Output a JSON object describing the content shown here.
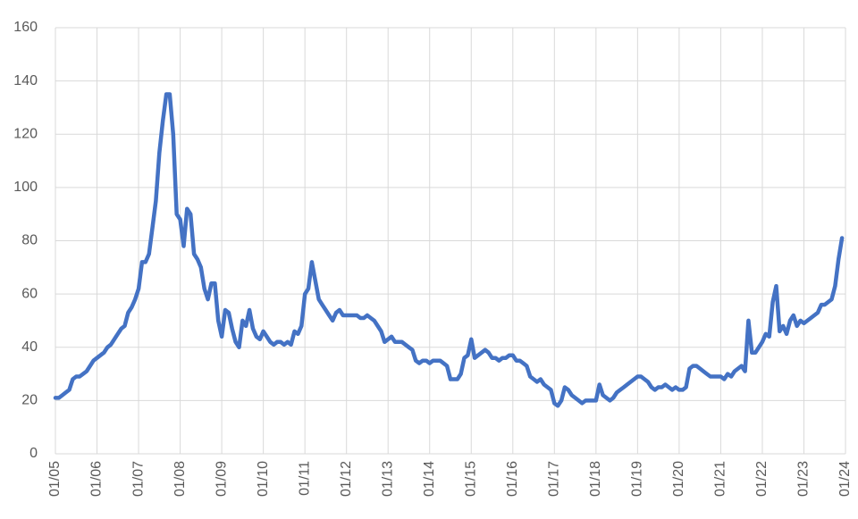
{
  "chart_data": {
    "type": "line",
    "x": [
      "01/05",
      "02/05",
      "03/05",
      "04/05",
      "05/05",
      "06/05",
      "07/05",
      "08/05",
      "09/05",
      "10/05",
      "11/05",
      "12/05",
      "01/06",
      "02/06",
      "03/06",
      "04/06",
      "05/06",
      "06/06",
      "07/06",
      "08/06",
      "09/06",
      "10/06",
      "11/06",
      "12/06",
      "01/07",
      "02/07",
      "03/07",
      "04/07",
      "05/07",
      "06/07",
      "07/07",
      "08/07",
      "09/07",
      "10/07",
      "11/07",
      "12/07",
      "01/08",
      "02/08",
      "03/08",
      "04/08",
      "05/08",
      "06/08",
      "07/08",
      "08/08",
      "09/08",
      "10/08",
      "11/08",
      "12/08",
      "01/09",
      "02/09",
      "03/09",
      "04/09",
      "05/09",
      "06/09",
      "07/09",
      "08/09",
      "09/09",
      "10/09",
      "11/09",
      "12/09",
      "01/10",
      "02/10",
      "03/10",
      "04/10",
      "05/10",
      "06/10",
      "07/10",
      "08/10",
      "09/10",
      "10/10",
      "11/10",
      "12/10",
      "01/11",
      "02/11",
      "03/11",
      "04/11",
      "05/11",
      "06/11",
      "07/11",
      "08/11",
      "09/11",
      "10/11",
      "11/11",
      "12/11",
      "01/12",
      "02/12",
      "03/12",
      "04/12",
      "05/12",
      "06/12",
      "07/12",
      "08/12",
      "09/12",
      "10/12",
      "11/12",
      "12/12",
      "01/13",
      "02/13",
      "03/13",
      "04/13",
      "05/13",
      "06/13",
      "07/13",
      "08/13",
      "09/13",
      "10/13",
      "11/13",
      "12/13",
      "01/14",
      "02/14",
      "03/14",
      "04/14",
      "05/14",
      "06/14",
      "07/14",
      "08/14",
      "09/14",
      "10/14",
      "11/14",
      "12/14",
      "01/15",
      "02/15",
      "03/15",
      "04/15",
      "05/15",
      "06/15",
      "07/15",
      "08/15",
      "09/15",
      "10/15",
      "11/15",
      "12/15",
      "01/16",
      "02/16",
      "03/16",
      "04/16",
      "05/16",
      "06/16",
      "07/16",
      "08/16",
      "09/16",
      "10/16",
      "11/16",
      "12/16",
      "01/17",
      "02/17",
      "03/17",
      "04/17",
      "05/17",
      "06/17",
      "07/17",
      "08/17",
      "09/17",
      "10/17",
      "11/17",
      "12/17",
      "01/18",
      "02/18",
      "03/18",
      "04/18",
      "05/18",
      "06/18",
      "07/18",
      "08/18",
      "09/18",
      "10/18",
      "11/18",
      "12/18",
      "01/19",
      "02/19",
      "03/19",
      "04/19",
      "05/19",
      "06/19",
      "07/19",
      "08/19",
      "09/19",
      "10/19",
      "11/19",
      "12/19",
      "01/20",
      "02/20",
      "03/20",
      "04/20",
      "05/20",
      "06/20",
      "07/20",
      "08/20",
      "09/20",
      "10/20",
      "11/20",
      "12/20",
      "01/21",
      "02/21",
      "03/21",
      "04/21",
      "05/21",
      "06/21",
      "07/21",
      "08/21",
      "09/21",
      "10/21",
      "11/21",
      "12/21",
      "01/22",
      "02/22",
      "03/22",
      "04/22",
      "05/22",
      "06/22",
      "07/22",
      "08/22",
      "09/22",
      "10/22",
      "11/22",
      "12/22",
      "01/23",
      "02/23",
      "03/23",
      "04/23",
      "05/23",
      "06/23",
      "07/23",
      "08/23",
      "09/23",
      "10/23",
      "11/23",
      "12/23"
    ],
    "series": [
      {
        "color": "#4472c4",
        "values": [
          21,
          21,
          22,
          23,
          24,
          28,
          29,
          29,
          30,
          31,
          33,
          35,
          36,
          37,
          38,
          40,
          41,
          43,
          45,
          47,
          48,
          53,
          55,
          58,
          62,
          72,
          72,
          75,
          85,
          95,
          113,
          125,
          135,
          135,
          120,
          90,
          88,
          78,
          92,
          90,
          75,
          73,
          70,
          62,
          58,
          64,
          64,
          50,
          44,
          54,
          53,
          47,
          42,
          40,
          50,
          48,
          54,
          47,
          44,
          43,
          46,
          44,
          42,
          41,
          42,
          42,
          41,
          42,
          41,
          46,
          45,
          48,
          60,
          62,
          72,
          65,
          58,
          56,
          54,
          52,
          50,
          53,
          54,
          52,
          52,
          52,
          52,
          52,
          51,
          51,
          52,
          51,
          50,
          48,
          46,
          42,
          43,
          44,
          42,
          42,
          42,
          41,
          40,
          39,
          35,
          34,
          35,
          35,
          34,
          35,
          35,
          35,
          34,
          33,
          28,
          28,
          28,
          30,
          36,
          37,
          43,
          36,
          37,
          38,
          39,
          38,
          36,
          36,
          35,
          36,
          36,
          37,
          37,
          35,
          35,
          34,
          33,
          29,
          28,
          27,
          28,
          26,
          25,
          24,
          19,
          18,
          20,
          25,
          24,
          22,
          21,
          20,
          19,
          20,
          20,
          20,
          20,
          26,
          22,
          21,
          20,
          21,
          23,
          24,
          25,
          26,
          27,
          28,
          29,
          29,
          28,
          27,
          25,
          24,
          25,
          25,
          26,
          25,
          24,
          25,
          24,
          24,
          25,
          32,
          33,
          33,
          32,
          31,
          30,
          29,
          29,
          29,
          29,
          28,
          30,
          29,
          31,
          32,
          33,
          31,
          50,
          38,
          38,
          40,
          42,
          45,
          44,
          57,
          63,
          46,
          48,
          45,
          50,
          52,
          48,
          50,
          49,
          50,
          51,
          52,
          53,
          56,
          56,
          57,
          58,
          63,
          73,
          81
        ]
      }
    ],
    "xlim": [
      "01/05",
      "01/24"
    ],
    "xticks": [
      "01/05",
      "01/06",
      "01/07",
      "01/08",
      "01/09",
      "01/10",
      "01/11",
      "01/12",
      "01/13",
      "01/14",
      "01/15",
      "01/16",
      "01/17",
      "01/18",
      "01/19",
      "01/20",
      "01/21",
      "01/22",
      "01/23",
      "01/24"
    ],
    "ylim": [
      0,
      160
    ],
    "yticks": [
      0,
      20,
      40,
      60,
      80,
      100,
      120,
      140,
      160
    ],
    "grid": true
  }
}
